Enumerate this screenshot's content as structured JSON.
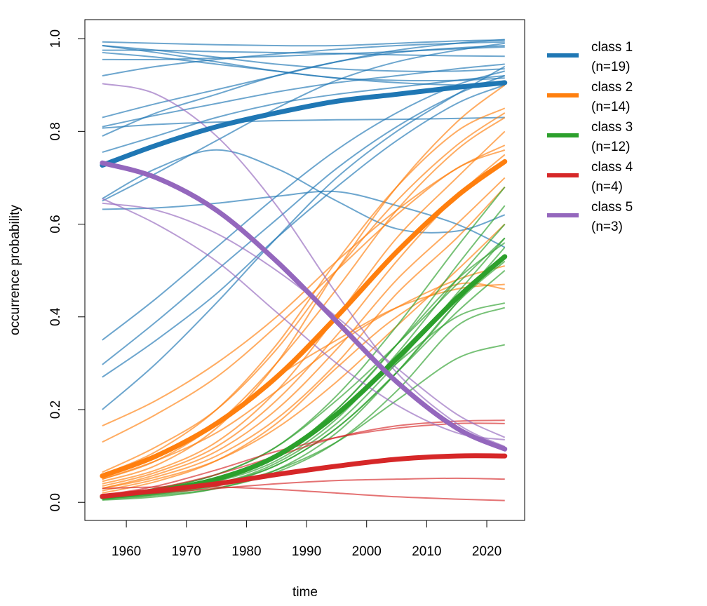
{
  "chart_data": {
    "type": "line",
    "x_label": "time",
    "y_label": "occurrence probability",
    "x": [
      1956,
      1965,
      1975,
      1985,
      1995,
      2005,
      2015,
      2023
    ],
    "xlim": [
      1953.1,
      2026.3
    ],
    "ylim": [
      -0.039,
      1.041
    ],
    "xticks": [
      1960,
      1970,
      1980,
      1990,
      2000,
      2010,
      2020
    ],
    "yticks": [
      {
        "value": 0,
        "label": "0.0"
      },
      0.2,
      0.4,
      0.6,
      0.8,
      {
        "value": 1,
        "label": "1.0"
      }
    ],
    "legend": "right",
    "series": [
      {
        "name": "class 1 (n=19)",
        "color": "#1f77b4",
        "values": [
          0.727,
          0.77,
          0.81,
          0.84,
          0.865,
          0.88,
          0.895,
          0.905
        ],
        "members": [
          [
            0.993,
            0.99,
            0.987,
            0.985,
            0.985,
            0.99,
            0.995,
            0.997
          ],
          [
            0.985,
            0.975,
            0.96,
            0.945,
            0.935,
            0.93,
            0.93,
            0.935
          ],
          [
            0.97,
            0.96,
            0.945,
            0.93,
            0.915,
            0.91,
            0.91,
            0.915
          ],
          [
            0.955,
            0.955,
            0.958,
            0.962,
            0.967,
            0.972,
            0.978,
            0.982
          ],
          [
            0.92,
            0.94,
            0.955,
            0.967,
            0.977,
            0.985,
            0.99,
            0.993
          ],
          [
            0.83,
            0.86,
            0.89,
            0.92,
            0.95,
            0.975,
            0.99,
            0.998
          ],
          [
            0.81,
            0.835,
            0.86,
            0.885,
            0.905,
            0.92,
            0.935,
            0.945
          ],
          [
            0.807,
            0.815,
            0.82,
            0.823,
            0.825,
            0.826,
            0.828,
            0.83
          ],
          [
            0.755,
            0.79,
            0.83,
            0.86,
            0.88,
            0.895,
            0.91,
            0.92
          ],
          [
            0.632,
            0.635,
            0.645,
            0.66,
            0.67,
            0.64,
            0.6,
            0.55
          ],
          [
            0.655,
            0.72,
            0.76,
            0.72,
            0.65,
            0.59,
            0.585,
            0.62
          ],
          [
            0.65,
            0.71,
            0.78,
            0.85,
            0.91,
            0.95,
            0.975,
            0.99
          ],
          [
            0.35,
            0.44,
            0.55,
            0.66,
            0.76,
            0.84,
            0.9,
            0.93
          ],
          [
            0.297,
            0.39,
            0.5,
            0.61,
            0.72,
            0.81,
            0.88,
            0.92
          ],
          [
            0.27,
            0.35,
            0.45,
            0.57,
            0.68,
            0.78,
            0.86,
            0.9
          ],
          [
            0.2,
            0.3,
            0.43,
            0.57,
            0.7,
            0.8,
            0.88,
            0.94
          ],
          [
            0.985,
            0.97,
            0.95,
            0.93,
            0.915,
            0.905,
            0.9,
            0.9
          ],
          [
            0.975,
            0.975,
            0.972,
            0.97,
            0.968,
            0.965,
            0.963,
            0.962
          ],
          [
            0.79,
            0.84,
            0.88,
            0.92,
            0.95,
            0.97,
            0.98,
            0.985
          ]
        ]
      },
      {
        "name": "class 2 (n=14)",
        "color": "#ff7f0e",
        "values": [
          0.057,
          0.1,
          0.17,
          0.27,
          0.4,
          0.54,
          0.66,
          0.735
        ],
        "members": [
          [
            0.165,
            0.22,
            0.3,
            0.4,
            0.52,
            0.63,
            0.72,
            0.77
          ],
          [
            0.13,
            0.19,
            0.27,
            0.38,
            0.5,
            0.62,
            0.72,
            0.76
          ],
          [
            0.065,
            0.12,
            0.2,
            0.33,
            0.5,
            0.65,
            0.77,
            0.84
          ],
          [
            0.06,
            0.11,
            0.2,
            0.34,
            0.52,
            0.68,
            0.8,
            0.85
          ],
          [
            0.05,
            0.09,
            0.17,
            0.3,
            0.46,
            0.63,
            0.76,
            0.83
          ],
          [
            0.045,
            0.08,
            0.16,
            0.3,
            0.5,
            0.68,
            0.82,
            0.9
          ],
          [
            0.04,
            0.07,
            0.13,
            0.24,
            0.4,
            0.57,
            0.7,
            0.8
          ],
          [
            0.035,
            0.065,
            0.12,
            0.22,
            0.36,
            0.52,
            0.66,
            0.75
          ],
          [
            0.03,
            0.06,
            0.11,
            0.2,
            0.33,
            0.48,
            0.6,
            0.7
          ],
          [
            0.03,
            0.055,
            0.1,
            0.18,
            0.3,
            0.45,
            0.57,
            0.68
          ],
          [
            0.025,
            0.05,
            0.09,
            0.16,
            0.26,
            0.38,
            0.5,
            0.6
          ],
          [
            0.055,
            0.1,
            0.17,
            0.27,
            0.35,
            0.42,
            0.46,
            0.47
          ],
          [
            0.02,
            0.045,
            0.09,
            0.17,
            0.29,
            0.4,
            0.47,
            0.46
          ],
          [
            0.05,
            0.09,
            0.15,
            0.24,
            0.34,
            0.42,
            0.48,
            0.51
          ]
        ]
      },
      {
        "name": "class 3 (n=12)",
        "color": "#2ca02c",
        "values": [
          0.012,
          0.025,
          0.05,
          0.1,
          0.19,
          0.31,
          0.44,
          0.53
        ],
        "members": [
          [
            0.015,
            0.03,
            0.06,
            0.12,
            0.23,
            0.38,
            0.55,
            0.68
          ],
          [
            0.012,
            0.025,
            0.05,
            0.1,
            0.2,
            0.34,
            0.51,
            0.64
          ],
          [
            0.01,
            0.022,
            0.045,
            0.09,
            0.18,
            0.32,
            0.48,
            0.6
          ],
          [
            0.01,
            0.02,
            0.04,
            0.085,
            0.17,
            0.3,
            0.45,
            0.57
          ],
          [
            0.008,
            0.018,
            0.038,
            0.08,
            0.16,
            0.28,
            0.43,
            0.55
          ],
          [
            0.01,
            0.02,
            0.04,
            0.08,
            0.16,
            0.28,
            0.41,
            0.5
          ],
          [
            0.012,
            0.025,
            0.05,
            0.1,
            0.19,
            0.3,
            0.4,
            0.43
          ],
          [
            0.008,
            0.017,
            0.035,
            0.07,
            0.13,
            0.22,
            0.31,
            0.34
          ],
          [
            0.006,
            0.015,
            0.03,
            0.065,
            0.13,
            0.24,
            0.38,
            0.42
          ],
          [
            0.015,
            0.03,
            0.06,
            0.12,
            0.22,
            0.34,
            0.47,
            0.57
          ],
          [
            0.005,
            0.012,
            0.03,
            0.07,
            0.15,
            0.28,
            0.43,
            0.52
          ],
          [
            0.01,
            0.022,
            0.048,
            0.1,
            0.2,
            0.34,
            0.48,
            0.56
          ]
        ]
      },
      {
        "name": "class 4 (n=4)",
        "color": "#d62728",
        "values": [
          0.013,
          0.025,
          0.04,
          0.06,
          0.078,
          0.093,
          0.1,
          0.1
        ],
        "members": [
          [
            0.015,
            0.035,
            0.07,
            0.11,
            0.14,
            0.16,
            0.17,
            0.17
          ],
          [
            0.01,
            0.03,
            0.06,
            0.1,
            0.14,
            0.165,
            0.175,
            0.177
          ],
          [
            0.01,
            0.02,
            0.03,
            0.04,
            0.047,
            0.05,
            0.052,
            0.05
          ],
          [
            0.03,
            0.033,
            0.033,
            0.028,
            0.02,
            0.012,
            0.007,
            0.004
          ]
        ]
      },
      {
        "name": "class 5 (n=3)",
        "color": "#9467bd",
        "values": [
          0.732,
          0.7,
          0.63,
          0.52,
          0.39,
          0.26,
          0.16,
          0.115
        ],
        "members": [
          [
            0.903,
            0.88,
            0.79,
            0.64,
            0.45,
            0.28,
            0.17,
            0.12
          ],
          [
            0.655,
            0.6,
            0.52,
            0.41,
            0.3,
            0.21,
            0.15,
            0.135
          ],
          [
            0.645,
            0.63,
            0.58,
            0.5,
            0.4,
            0.29,
            0.19,
            0.14
          ]
        ]
      }
    ]
  }
}
